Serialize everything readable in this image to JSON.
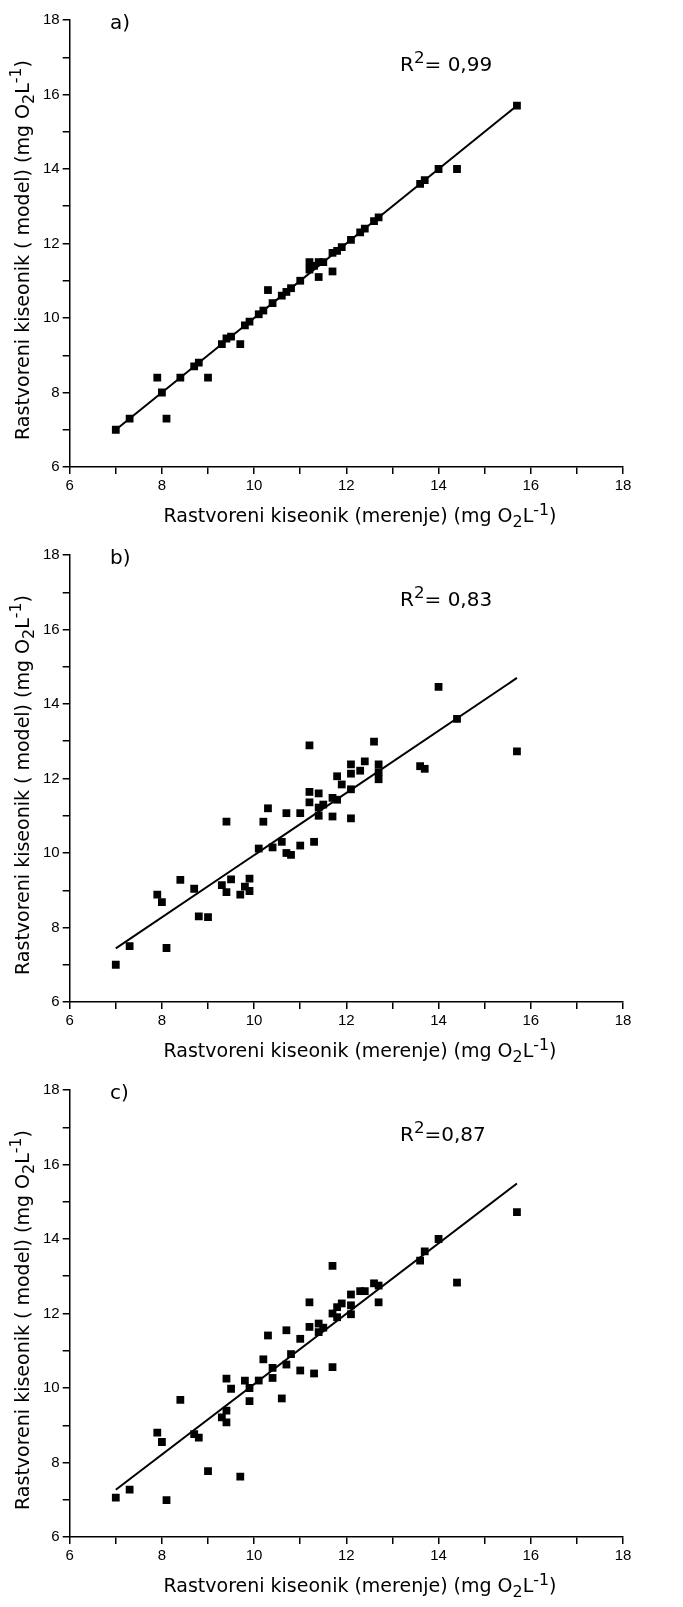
{
  "chart_data": [
    {
      "type": "scatter",
      "xlabel": "Rastvoreni kiseonik (merenje) (mg O$_{2}$L$^{-1}$)",
      "ylabel": "Rastvoreni kiseonik ( model) (mg O$_{2}$L$^{-1}$)",
      "annotations": [
        "a)",
        "R$^{2}$= 0,99"
      ],
      "xlim": [
        6,
        18
      ],
      "ylim": [
        6,
        18
      ],
      "xticks": [
        6,
        {
          "value": 7,
          "label": null
        },
        8,
        {
          "value": 9,
          "label": null
        },
        10,
        {
          "value": 11,
          "label": null
        },
        12,
        {
          "value": 13,
          "label": null
        },
        14,
        {
          "value": 15,
          "label": null
        },
        16,
        {
          "value": 17,
          "label": null
        },
        18
      ],
      "yticks": [
        6,
        {
          "value": 7,
          "label": null
        },
        8,
        {
          "value": 9,
          "label": null
        },
        10,
        {
          "value": 11,
          "label": null
        },
        12,
        {
          "value": 13,
          "label": null
        },
        14,
        {
          "value": 15,
          "label": null
        },
        16,
        {
          "value": 17,
          "label": null
        },
        18
      ],
      "grid": false,
      "legend": false,
      "series": [
        {
          "marker": "square",
          "color": "#000000",
          "x": [
            7.0,
            7.3,
            7.9,
            8.0,
            8.1,
            8.4,
            8.7,
            8.8,
            9.0,
            9.3,
            9.4,
            9.5,
            9.7,
            9.8,
            9.9,
            10.1,
            10.2,
            10.3,
            10.4,
            10.6,
            10.7,
            10.8,
            11.0,
            11.2,
            11.2,
            11.3,
            11.4,
            11.4,
            11.5,
            11.7,
            11.7,
            11.8,
            11.9,
            12.1,
            12.3,
            12.4,
            12.6,
            12.7,
            13.6,
            13.7,
            14.0,
            14.4,
            15.7
          ],
          "values": [
            7.0,
            7.3,
            8.4,
            8.0,
            7.3,
            8.4,
            8.7,
            8.8,
            8.4,
            9.3,
            9.45,
            9.5,
            9.3,
            9.8,
            9.9,
            10.1,
            10.2,
            10.75,
            10.4,
            10.6,
            10.7,
            10.8,
            11.0,
            11.5,
            11.3,
            11.4,
            11.1,
            11.5,
            11.5,
            11.25,
            11.75,
            11.8,
            11.9,
            12.1,
            12.3,
            12.4,
            12.6,
            12.7,
            13.6,
            13.7,
            14.0,
            14.0,
            15.7
          ]
        },
        {
          "type": "line",
          "marker": "none",
          "color": "#000000",
          "x": [
            7.0,
            15.7
          ],
          "values": [
            7.0,
            15.7
          ]
        }
      ]
    },
    {
      "type": "scatter",
      "xlabel": "Rastvoreni kiseonik (merenje) (mg O$_{2}$L$^{-1}$)",
      "ylabel": "Rastvoreni kiseonik ( model) (mg O$_{2}$L$^{-1}$)",
      "annotations": [
        "b)",
        "R$^{2}$= 0,83"
      ],
      "xlim": [
        6,
        18
      ],
      "ylim": [
        6,
        18
      ],
      "xticks": [
        6,
        {
          "value": 7,
          "label": null
        },
        8,
        {
          "value": 9,
          "label": null
        },
        10,
        {
          "value": 11,
          "label": null
        },
        12,
        {
          "value": 13,
          "label": null
        },
        14,
        {
          "value": 15,
          "label": null
        },
        16,
        {
          "value": 17,
          "label": null
        },
        18
      ],
      "yticks": [
        6,
        {
          "value": 7,
          "label": null
        },
        8,
        {
          "value": 9,
          "label": null
        },
        10,
        {
          "value": 11,
          "label": null
        },
        12,
        {
          "value": 13,
          "label": null
        },
        14,
        {
          "value": 15,
          "label": null
        },
        16,
        {
          "value": 17,
          "label": null
        },
        18
      ],
      "grid": false,
      "legend": false,
      "series": [
        {
          "marker": "square",
          "color": "#000000",
          "x": [
            7.0,
            7.3,
            7.9,
            8.0,
            8.1,
            8.4,
            8.7,
            8.8,
            9.0,
            9.3,
            9.4,
            9.4,
            9.5,
            9.7,
            9.8,
            9.9,
            9.9,
            10.1,
            10.2,
            10.3,
            10.4,
            10.6,
            10.7,
            10.7,
            10.8,
            11.0,
            11.0,
            11.2,
            11.2,
            11.2,
            11.3,
            11.4,
            11.4,
            11.4,
            11.5,
            11.7,
            11.7,
            11.8,
            11.8,
            11.9,
            12.1,
            12.1,
            12.1,
            12.1,
            12.3,
            12.4,
            12.6,
            12.7,
            12.7,
            12.7,
            13.6,
            13.7,
            14.0,
            14.4,
            15.7
          ],
          "values": [
            7.0,
            7.5,
            8.88,
            8.68,
            7.45,
            9.28,
            9.04,
            8.3,
            8.28,
            9.14,
            10.84,
            8.95,
            9.29,
            8.88,
            9.1,
            9.31,
            8.98,
            10.12,
            10.84,
            11.2,
            10.15,
            10.3,
            11.07,
            10.0,
            9.95,
            11.07,
            10.2,
            12.89,
            11.64,
            11.36,
            10.3,
            11.6,
            11.22,
            11.0,
            11.3,
            11.48,
            10.98,
            12.06,
            11.43,
            11.84,
            12.38,
            12.13,
            11.71,
            10.93,
            12.21,
            12.46,
            12.99,
            12.38,
            12.17,
            11.98,
            12.33,
            12.26,
            14.46,
            13.6,
            12.73
          ]
        },
        {
          "type": "line",
          "marker": "none",
          "color": "#000000",
          "x": [
            7.0,
            15.7
          ],
          "values": [
            7.44,
            14.7
          ]
        }
      ]
    },
    {
      "type": "scatter",
      "xlabel": "Rastvoreni kiseonik (merenje) (mg O$_{2}$L$^{-1}$)",
      "ylabel": "Rastvoreni kiseonik ( model) (mg O$_{2}$L$^{-1}$)",
      "annotations": [
        "c)",
        "R$^{2}$=0,87"
      ],
      "xlim": [
        6,
        18
      ],
      "ylim": [
        6,
        18
      ],
      "xticks": [
        6,
        {
          "value": 7,
          "label": null
        },
        8,
        {
          "value": 9,
          "label": null
        },
        10,
        {
          "value": 11,
          "label": null
        },
        12,
        {
          "value": 13,
          "label": null
        },
        14,
        {
          "value": 15,
          "label": null
        },
        16,
        {
          "value": 17,
          "label": null
        },
        18
      ],
      "yticks": [
        6,
        {
          "value": 7,
          "label": null
        },
        8,
        {
          "value": 9,
          "label": null
        },
        10,
        {
          "value": 11,
          "label": null
        },
        12,
        {
          "value": 13,
          "label": null
        },
        14,
        {
          "value": 15,
          "label": null
        },
        16,
        {
          "value": 17,
          "label": null
        },
        18
      ],
      "grid": false,
      "legend": false,
      "series": [
        {
          "marker": "square",
          "color": "#000000",
          "x": [
            7.0,
            7.3,
            7.9,
            8.0,
            8.1,
            8.4,
            8.7,
            8.8,
            9.0,
            9.3,
            9.4,
            9.4,
            9.4,
            9.5,
            9.7,
            9.8,
            9.9,
            9.9,
            10.1,
            10.2,
            10.3,
            10.4,
            10.4,
            10.6,
            10.7,
            10.7,
            10.8,
            11.0,
            11.0,
            11.2,
            11.2,
            11.3,
            11.4,
            11.4,
            11.5,
            11.7,
            11.7,
            11.7,
            11.8,
            11.8,
            11.9,
            12.1,
            12.1,
            12.1,
            12.3,
            12.4,
            12.6,
            12.7,
            12.7,
            13.6,
            13.7,
            14.0,
            14.4,
            15.7
          ],
          "values": [
            7.06,
            7.27,
            8.8,
            8.55,
            6.99,
            9.68,
            8.76,
            8.67,
            7.77,
            9.21,
            10.25,
            9.39,
            9.08,
            9.98,
            7.62,
            10.2,
            10.0,
            9.65,
            10.2,
            10.77,
            11.41,
            10.54,
            10.27,
            9.72,
            11.55,
            10.63,
            10.91,
            11.32,
            10.47,
            12.3,
            11.64,
            10.39,
            11.73,
            11.5,
            11.62,
            13.28,
            12.0,
            10.56,
            12.17,
            11.9,
            12.27,
            12.51,
            12.22,
            11.98,
            12.6,
            12.6,
            12.81,
            12.75,
            12.3,
            13.42,
            13.67,
            14.0,
            12.83,
            14.72
          ]
        },
        {
          "type": "line",
          "marker": "none",
          "color": "#000000",
          "x": [
            7.0,
            15.7
          ],
          "values": [
            7.27,
            15.49
          ]
        }
      ]
    }
  ]
}
